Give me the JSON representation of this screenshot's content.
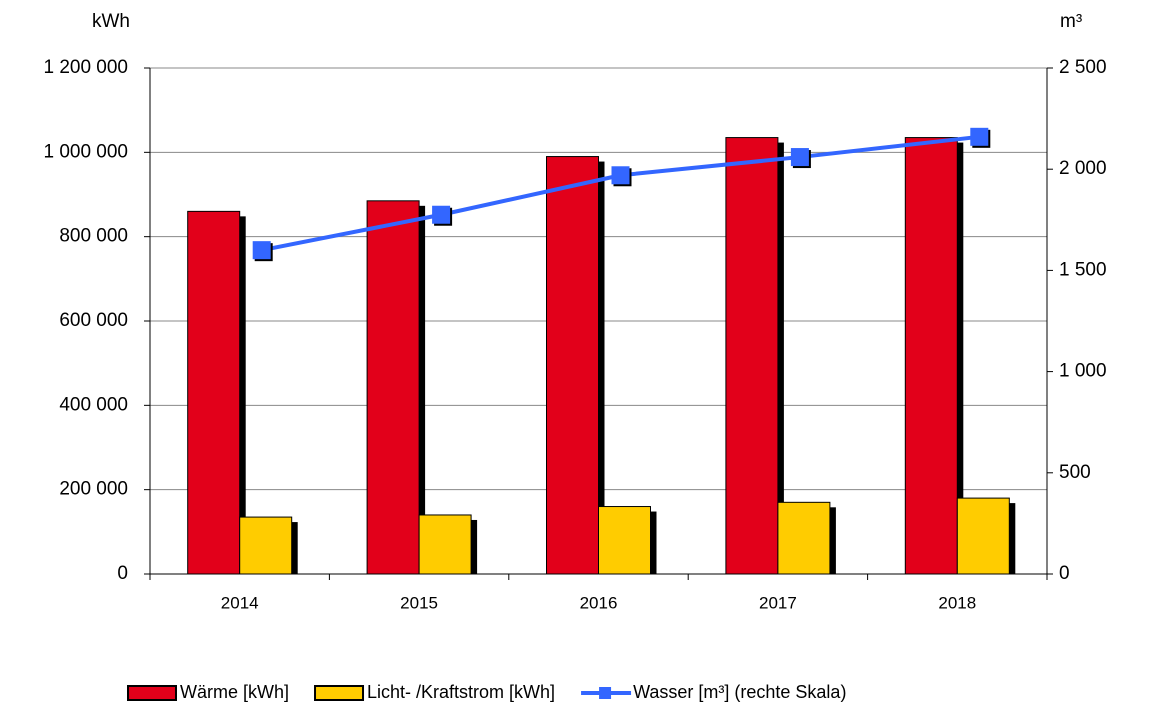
{
  "chart_data": {
    "type": "bar",
    "y_label": "kWh",
    "y2_label": "m³",
    "categories": [
      "2014",
      "2015",
      "2016",
      "2017",
      "2018"
    ],
    "series": [
      {
        "name": "Wärme [kWh]",
        "color": "#e2001a",
        "values": [
          860000,
          885000,
          990000,
          1035000,
          1035000
        ]
      },
      {
        "name": "Licht- /Kraftstrom [kWh]",
        "color": "#ffcc00",
        "values": [
          135000,
          140000,
          160000,
          170000,
          180000
        ]
      },
      {
        "name": "Wasser [m³] (rechte Skala)",
        "color": "#3366ff",
        "type": "line",
        "axis": "y2",
        "values": [
          1600,
          1775,
          1970,
          2060,
          2160
        ]
      }
    ],
    "ylim": [
      0,
      1200000
    ],
    "yticks": [
      0,
      {
        "value": 200000,
        "label": "200 000"
      },
      {
        "value": 400000,
        "label": "400 000"
      },
      {
        "value": 600000,
        "label": "600 000"
      },
      {
        "value": 800000,
        "label": "800 000"
      },
      {
        "value": 1000000,
        "label": "1 000 000"
      },
      {
        "value": 1200000,
        "label": "1 200 000"
      }
    ],
    "y2lim": [
      0,
      2500
    ],
    "y2ticks": [
      0,
      500,
      {
        "value": 1000,
        "label": "1 000"
      },
      {
        "value": 1500,
        "label": "1 500"
      },
      {
        "value": 2000,
        "label": "2 000"
      },
      {
        "value": 2500,
        "label": "2 500"
      }
    ],
    "grid": true,
    "legend": "bottom"
  }
}
